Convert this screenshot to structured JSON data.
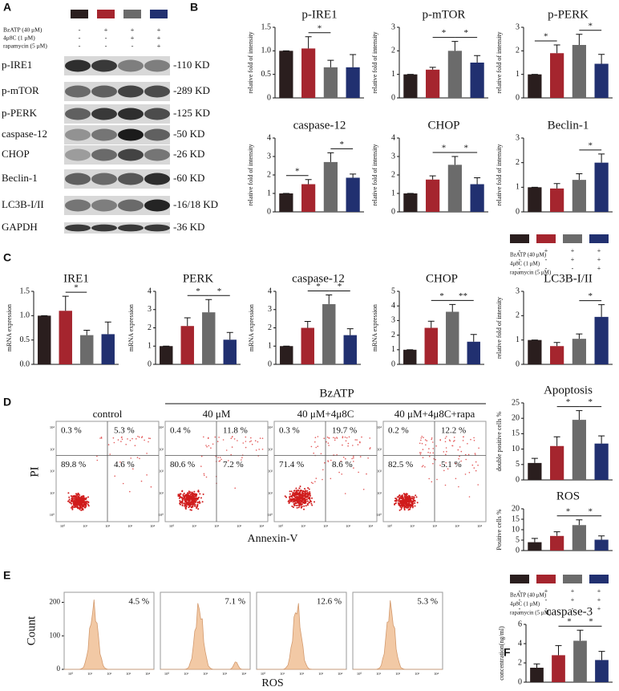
{
  "panel_labels": [
    "A",
    "B",
    "C",
    "D",
    "E",
    "F"
  ],
  "treatment_legend": {
    "colors": [
      "#2a1e1e",
      "#a5252e",
      "#6b6b6b",
      "#213070"
    ],
    "rows": [
      {
        "label": "BzATP (40 μM)",
        "signs": [
          "-",
          "+",
          "+",
          "+"
        ]
      },
      {
        "label": "4μ8C (1 μM)",
        "signs": [
          "-",
          "-",
          "+",
          "+"
        ]
      },
      {
        "label": "rapamycin (5 μM)",
        "signs": [
          "-",
          "-",
          "-",
          "+"
        ]
      }
    ]
  },
  "western_blot": {
    "rows": [
      {
        "protein": "p-IRE1",
        "size": "-110 KD"
      },
      {
        "protein": "p-mTOR",
        "size": "-289 KD"
      },
      {
        "protein": "p-PERK",
        "size": "-125 KD"
      },
      {
        "protein": "caspase-12",
        "size": "-50 KD"
      },
      {
        "protein": "CHOP",
        "size": "-26 KD"
      },
      {
        "protein": "Beclin-1",
        "size": "-60 KD"
      },
      {
        "protein": "LC3B-I/II",
        "size": "-16/18 KD"
      },
      {
        "protein": "GAPDH",
        "size": "-36 KD"
      }
    ]
  },
  "flow_cytometry": {
    "group_label": "BzATP",
    "y_axis_label": "PI",
    "x_axis_label": "Annexin-V",
    "axis_ticks": [
      "10⁰",
      "10¹",
      "10²",
      "10³",
      "10⁴"
    ],
    "panels": [
      {
        "title": "control",
        "quadrants": [
          "0.3 %",
          "5.3 %",
          "89.8 %",
          "4.6 %"
        ]
      },
      {
        "title": "40 μM",
        "quadrants": [
          "0.4 %",
          "11.8 %",
          "80.6 %",
          "7.2 %"
        ]
      },
      {
        "title": "40 μM+4μ8C",
        "quadrants": [
          "0.3 %",
          "19.7 %",
          "71.4 %",
          "8.6 %"
        ]
      },
      {
        "title": "40 μM+4μ8C+rapa",
        "quadrants": [
          "0.2 %",
          "12.2 %",
          "82.5 %",
          "5.1 %"
        ]
      }
    ]
  },
  "ros_histograms": {
    "y_axis_label": "Count",
    "x_axis_label": "ROS",
    "ylim": [
      0,
      230
    ],
    "yticks": [
      0,
      100,
      200
    ],
    "percentages": [
      "4.5 %",
      "7.1 %",
      "12.6 %",
      "5.3 %"
    ]
  },
  "chart_data": [
    {
      "type": "bar",
      "title": "p-IRE1",
      "y_label": "relative fold of intensity",
      "categories": [
        null,
        null,
        null,
        null
      ],
      "values": [
        1.0,
        1.05,
        0.65,
        0.65
      ],
      "errors": [
        0,
        0.25,
        0.15,
        0.27
      ],
      "colors": [
        "#2a1e1e",
        "#a5252e",
        "#6b6b6b",
        "#213070"
      ],
      "ylim": [
        0,
        1.5
      ],
      "yticks": [
        0,
        0.5,
        {
          "value": 1,
          "label": "1.0"
        },
        1.5
      ],
      "significance": [
        {
          "bars": [
            1,
            2
          ],
          "label": "*"
        }
      ]
    },
    {
      "type": "bar",
      "title": "p-mTOR",
      "y_label": "relative fold of intensity",
      "categories": [
        null,
        null,
        null,
        null
      ],
      "values": [
        1.0,
        1.2,
        2.0,
        1.5
      ],
      "errors": [
        0,
        0.1,
        0.4,
        0.3
      ],
      "colors": [
        "#2a1e1e",
        "#a5252e",
        "#6b6b6b",
        "#213070"
      ],
      "ylim": [
        0,
        3
      ],
      "yticks": [
        0,
        1,
        2,
        3
      ],
      "significance": [
        {
          "bars": [
            1,
            2
          ],
          "label": "*"
        },
        {
          "bars": [
            2,
            3
          ],
          "label": "*"
        }
      ]
    },
    {
      "type": "bar",
      "title": "p-PERK",
      "y_label": "relative fold of intensity",
      "categories": [
        null,
        null,
        null,
        null
      ],
      "values": [
        1.0,
        1.9,
        2.25,
        1.45
      ],
      "errors": [
        0,
        0.35,
        0.45,
        0.4
      ],
      "colors": [
        "#2a1e1e",
        "#a5252e",
        "#6b6b6b",
        "#213070"
      ],
      "ylim": [
        0,
        3
      ],
      "yticks": [
        0,
        1,
        2,
        3
      ],
      "significance": [
        {
          "bars": [
            0,
            1
          ],
          "label": "*"
        },
        {
          "bars": [
            2,
            3
          ],
          "label": "*"
        }
      ]
    },
    {
      "type": "bar",
      "title": "caspase-12",
      "y_label": "relative fold of intensity",
      "categories": [
        null,
        null,
        null,
        null
      ],
      "values": [
        1.0,
        1.5,
        2.7,
        1.85
      ],
      "errors": [
        0,
        0.25,
        0.5,
        0.2
      ],
      "colors": [
        "#2a1e1e",
        "#a5252e",
        "#6b6b6b",
        "#213070"
      ],
      "ylim": [
        0,
        4
      ],
      "yticks": [
        0,
        1,
        2,
        3,
        4
      ],
      "significance": [
        {
          "bars": [
            0,
            1
          ],
          "label": "*"
        },
        {
          "bars": [
            2,
            3
          ],
          "label": "*"
        }
      ]
    },
    {
      "type": "bar",
      "title": "CHOP",
      "y_label": "relative fold of intensity",
      "categories": [
        null,
        null,
        null,
        null
      ],
      "values": [
        1.0,
        1.75,
        2.55,
        1.5
      ],
      "errors": [
        0,
        0.2,
        0.45,
        0.35
      ],
      "colors": [
        "#2a1e1e",
        "#a5252e",
        "#6b6b6b",
        "#213070"
      ],
      "ylim": [
        0,
        4
      ],
      "yticks": [
        0,
        1,
        2,
        3,
        4
      ],
      "significance": [
        {
          "bars": [
            1,
            2
          ],
          "label": "*"
        },
        {
          "bars": [
            2,
            3
          ],
          "label": "*"
        }
      ]
    },
    {
      "type": "bar",
      "title": "Beclin-1",
      "y_label": "relative fold of intensity",
      "categories": [
        null,
        null,
        null,
        null
      ],
      "values": [
        1.0,
        0.95,
        1.3,
        2.0
      ],
      "errors": [
        0,
        0.2,
        0.25,
        0.35
      ],
      "colors": [
        "#2a1e1e",
        "#a5252e",
        "#6b6b6b",
        "#213070"
      ],
      "ylim": [
        0,
        3
      ],
      "yticks": [
        0,
        1,
        2,
        3
      ],
      "significance": [
        {
          "bars": [
            2,
            3
          ],
          "label": "*"
        }
      ]
    },
    {
      "type": "bar",
      "title": "IRE1",
      "y_label": "mRNA expression",
      "categories": [
        null,
        null,
        null,
        null
      ],
      "values": [
        1.0,
        1.1,
        0.6,
        0.62
      ],
      "errors": [
        0,
        0.3,
        0.1,
        0.25
      ],
      "colors": [
        "#2a1e1e",
        "#a5252e",
        "#6b6b6b",
        "#213070"
      ],
      "ylim": [
        0,
        1.5
      ],
      "yticks": [
        {
          "value": 0,
          "label": "0.0"
        },
        0.5,
        {
          "value": 1,
          "label": "1.0"
        },
        1.5
      ],
      "significance": [
        {
          "bars": [
            1,
            2
          ],
          "label": "*"
        }
      ]
    },
    {
      "type": "bar",
      "title": "PERK",
      "y_label": "mRNA expression",
      "categories": [
        null,
        null,
        null,
        null
      ],
      "values": [
        1.0,
        2.1,
        2.85,
        1.35
      ],
      "errors": [
        0,
        0.45,
        0.7,
        0.4
      ],
      "colors": [
        "#2a1e1e",
        "#a5252e",
        "#6b6b6b",
        "#213070"
      ],
      "ylim": [
        0,
        4
      ],
      "yticks": [
        0,
        1,
        2,
        3,
        4
      ],
      "significance": [
        {
          "bars": [
            1,
            2
          ],
          "label": "*"
        },
        {
          "bars": [
            2,
            3
          ],
          "label": "*"
        }
      ]
    },
    {
      "type": "bar",
      "title": "caspase-12",
      "y_label": "mRNA expression",
      "categories": [
        null,
        null,
        null,
        null
      ],
      "values": [
        1.0,
        2.0,
        3.3,
        1.6
      ],
      "errors": [
        0,
        0.35,
        0.5,
        0.35
      ],
      "colors": [
        "#2a1e1e",
        "#a5252e",
        "#6b6b6b",
        "#213070"
      ],
      "ylim": [
        0,
        4
      ],
      "yticks": [
        0,
        1,
        2,
        3,
        4
      ],
      "significance": [
        {
          "bars": [
            1,
            2
          ],
          "label": "*"
        },
        {
          "bars": [
            2,
            3
          ],
          "label": "*"
        }
      ]
    },
    {
      "type": "bar",
      "title": "CHOP",
      "y_label": "mRNA expression",
      "categories": [
        null,
        null,
        null,
        null
      ],
      "values": [
        1.0,
        2.5,
        3.6,
        1.55
      ],
      "errors": [
        0,
        0.45,
        0.5,
        0.5
      ],
      "colors": [
        "#2a1e1e",
        "#a5252e",
        "#6b6b6b",
        "#213070"
      ],
      "ylim": [
        0,
        5
      ],
      "yticks": [
        0,
        1,
        2,
        3,
        4,
        5
      ],
      "significance": [
        {
          "bars": [
            1,
            2
          ],
          "label": "*"
        },
        {
          "bars": [
            2,
            3
          ],
          "label": "**"
        }
      ]
    },
    {
      "type": "bar",
      "title": "LC3B-I/II",
      "y_label": "relative fold of intensity",
      "categories": [
        null,
        null,
        null,
        null
      ],
      "values": [
        1.0,
        0.75,
        1.05,
        1.95
      ],
      "errors": [
        0,
        0.15,
        0.2,
        0.5
      ],
      "colors": [
        "#2a1e1e",
        "#a5252e",
        "#6b6b6b",
        "#213070"
      ],
      "ylim": [
        0,
        3
      ],
      "yticks": [
        0,
        1,
        2,
        3
      ],
      "significance": [
        {
          "bars": [
            2,
            3
          ],
          "label": "*"
        }
      ]
    },
    {
      "type": "bar",
      "title": "Apoptosis",
      "y_label": "double positive cells %",
      "categories": [
        null,
        null,
        null,
        null
      ],
      "values": [
        5.5,
        11,
        19.5,
        11.8
      ],
      "errors": [
        1.5,
        3,
        3,
        2.5
      ],
      "colors": [
        "#2a1e1e",
        "#a5252e",
        "#6b6b6b",
        "#213070"
      ],
      "ylim": [
        0,
        25
      ],
      "yticks": [
        0,
        5,
        10,
        15,
        20,
        25
      ],
      "significance": [
        {
          "bars": [
            1,
            2
          ],
          "label": "*"
        },
        {
          "bars": [
            2,
            3
          ],
          "label": "*"
        }
      ]
    },
    {
      "type": "bar",
      "title": "ROS",
      "y_label": "Positive cells %",
      "categories": [
        null,
        null,
        null,
        null
      ],
      "values": [
        4,
        7,
        12.2,
        5.2
      ],
      "errors": [
        1.8,
        2,
        2.5,
        1.8
      ],
      "colors": [
        "#2a1e1e",
        "#a5252e",
        "#6b6b6b",
        "#213070"
      ],
      "ylim": [
        0,
        20
      ],
      "yticks": [
        0,
        5,
        10,
        15,
        20
      ],
      "significance": [
        {
          "bars": [
            1,
            2
          ],
          "label": "*"
        },
        {
          "bars": [
            2,
            3
          ],
          "label": "*"
        }
      ]
    },
    {
      "type": "bar",
      "title": "caspase-3",
      "y_label": "concentration(ng/ml)",
      "categories": [
        null,
        null,
        null,
        null
      ],
      "values": [
        1.5,
        2.8,
        4.3,
        2.3
      ],
      "errors": [
        0.4,
        1.0,
        1.1,
        0.9
      ],
      "colors": [
        "#2a1e1e",
        "#a5252e",
        "#6b6b6b",
        "#213070"
      ],
      "ylim": [
        0,
        6
      ],
      "yticks": [
        0,
        2,
        4,
        6
      ],
      "significance": [
        {
          "bars": [
            1,
            2
          ],
          "label": "*"
        },
        {
          "bars": [
            2,
            3
          ],
          "label": "*"
        }
      ]
    }
  ]
}
